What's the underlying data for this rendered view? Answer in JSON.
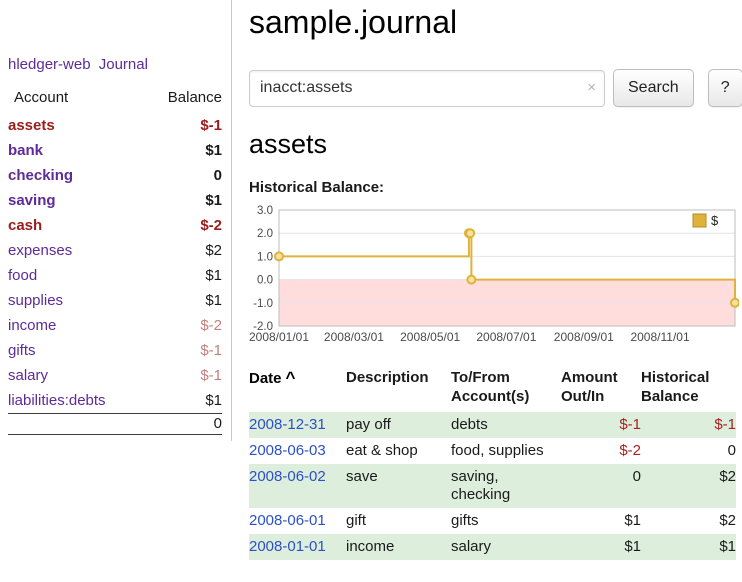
{
  "theme": {
    "brand_purple": "#5e2b97",
    "negative_dark_red": "#9b1c1c",
    "negative_pale_red": "#c4807f",
    "negative_red": "#a82222",
    "date_link_blue": "#2b50c8",
    "row_stripe_green": "#ddeedd"
  },
  "app": {
    "title": "hledger-web",
    "nav_journal_label": "Journal"
  },
  "sidebar": {
    "headers": {
      "account": "Account",
      "balance": "Balance"
    },
    "accounts": [
      {
        "name": "assets",
        "balance": "$-1"
      },
      {
        "name": "bank",
        "balance": "$1"
      },
      {
        "name": "checking",
        "balance": "0"
      },
      {
        "name": "saving",
        "balance": "$1"
      },
      {
        "name": "cash",
        "balance": "$-2"
      },
      {
        "name": "expenses",
        "balance": "$2"
      },
      {
        "name": "food",
        "balance": "$1"
      },
      {
        "name": "supplies",
        "balance": "$1"
      },
      {
        "name": "income",
        "balance": "$-2"
      },
      {
        "name": "gifts",
        "balance": "$-1"
      },
      {
        "name": "salary",
        "balance": "$-1"
      },
      {
        "name": "liabilities:debts",
        "balance": "$1"
      }
    ],
    "total": "0"
  },
  "main": {
    "page_title": "sample.journal",
    "search": {
      "value": "inacct:assets",
      "clear_icon": "×",
      "search_button_label": "Search",
      "help_button_label": "?"
    },
    "section_title": "assets",
    "chart_heading": "Historical Balance:"
  },
  "chart_data": {
    "type": "line",
    "step": true,
    "title": "Historical Balance",
    "xlim": [
      "2008-01-01",
      "2008-12-31"
    ],
    "ylim": [
      -2.0,
      3.0
    ],
    "yticks": [
      3.0,
      2.0,
      1.0,
      0.0,
      -1.0,
      -2.0
    ],
    "xtick_labels": [
      "2008/01/01",
      "2008/03/01",
      "2008/05/01",
      "2008/07/01",
      "2008/09/01",
      "2008/11/01"
    ],
    "legend": {
      "label": "$",
      "position": "top-right"
    },
    "series": [
      {
        "name": "$",
        "points": [
          {
            "date": "2008-01-01",
            "value": 1
          },
          {
            "date": "2008-06-01",
            "value": 2
          },
          {
            "date": "2008-06-02",
            "value": 2
          },
          {
            "date": "2008-06-03",
            "value": 0
          },
          {
            "date": "2008-12-31",
            "value": -1
          }
        ]
      }
    ],
    "colors": {
      "line": "#dfb23c",
      "marker_fill": "#f6e39b",
      "negative_region": "#ffdddd",
      "grid": "#e4e4e4",
      "border": "#bdbdbd",
      "legend_border": "#b38f1f",
      "tick_text": "#4a4a4a"
    }
  },
  "register": {
    "header": {
      "date": "Date",
      "sort_indicator": "^",
      "description": "Description",
      "account_line1": "To/From",
      "account_line2": "Account(s)",
      "amount_line1": "Amount",
      "amount_line2": "Out/In",
      "balance_line1": "Historical",
      "balance_line2": "Balance"
    },
    "rows": [
      {
        "date": "2008-12-31",
        "description": "pay off",
        "accounts": "debts",
        "amount": "$-1",
        "balance": "$-1"
      },
      {
        "date": "2008-06-03",
        "description": "eat & shop",
        "accounts": "food, supplies",
        "amount": "$-2",
        "balance": "0"
      },
      {
        "date": "2008-06-02",
        "description": "save",
        "accounts": "saving, checking",
        "amount": "0",
        "balance": "$2"
      },
      {
        "date": "2008-06-01",
        "description": "gift",
        "accounts": "gifts",
        "amount": "$1",
        "balance": "$2"
      },
      {
        "date": "2008-01-01",
        "description": "income",
        "accounts": "salary",
        "amount": "$1",
        "balance": "$1"
      }
    ]
  }
}
